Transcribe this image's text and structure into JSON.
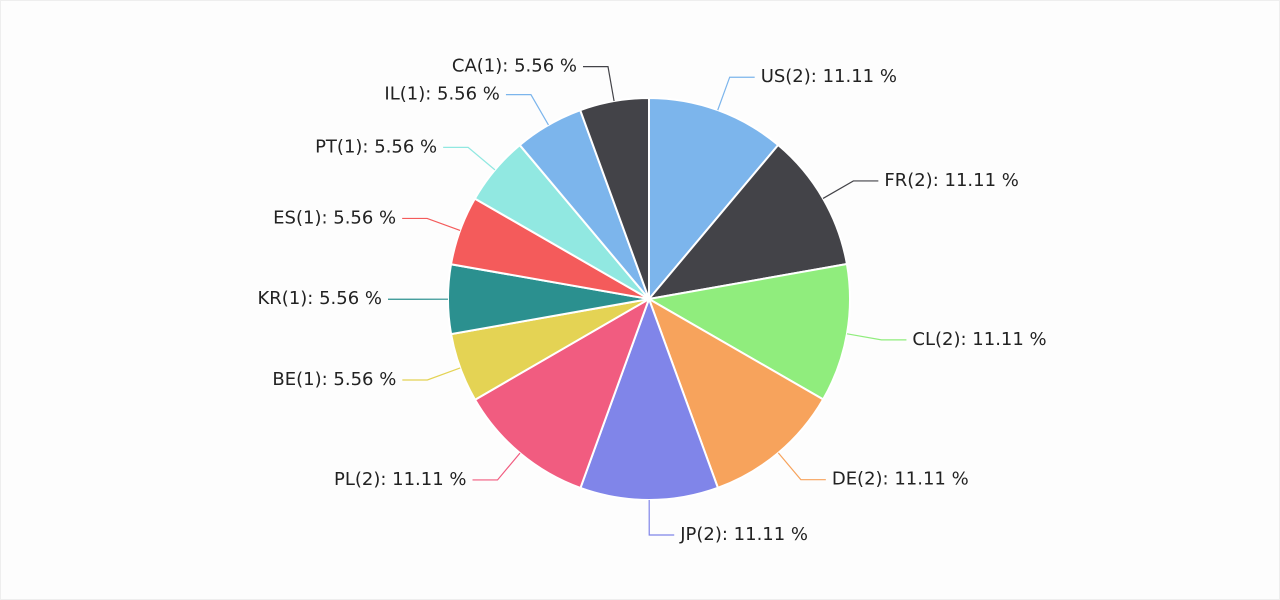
{
  "chart_data": {
    "type": "pie",
    "values": [
      11.11,
      11.11,
      11.11,
      11.11,
      11.11,
      11.11,
      5.56,
      5.56,
      5.56,
      5.56,
      5.56,
      5.56
    ],
    "value_labels": [
      "US(2): 11.11 %",
      "FR(2): 11.11 %",
      "CL(2): 11.11 %",
      "DE(2): 11.11 %",
      "JP(2): 11.11 %",
      "PL(2): 11.11 %",
      "BE(1): 5.56 %",
      "KR(1): 5.56 %",
      "ES(1): 5.56 %",
      "PT(1): 5.56 %",
      "IL(1): 5.56 %",
      "CA(1): 5.56 %"
    ],
    "colors": [
      "#7cb5ec",
      "#434348",
      "#90ed7d",
      "#f7a35c",
      "#8085e9",
      "#f15c80",
      "#e4d354",
      "#2b908f",
      "#f45b5b",
      "#91e8e1",
      "#7cb5ec",
      "#434348"
    ]
  }
}
